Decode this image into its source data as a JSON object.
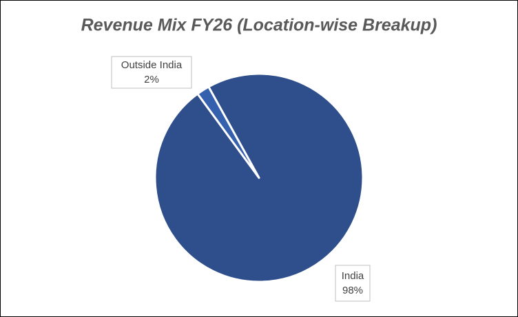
{
  "chart_data": {
    "type": "pie",
    "title": "Revenue Mix FY26 (Location-wise Breakup)",
    "categories": [
      "India",
      "Outside India"
    ],
    "values": [
      98,
      2
    ],
    "value_labels": [
      "98%",
      "2%"
    ],
    "colors": [
      "#2f4f8c",
      "#3560ad"
    ]
  }
}
